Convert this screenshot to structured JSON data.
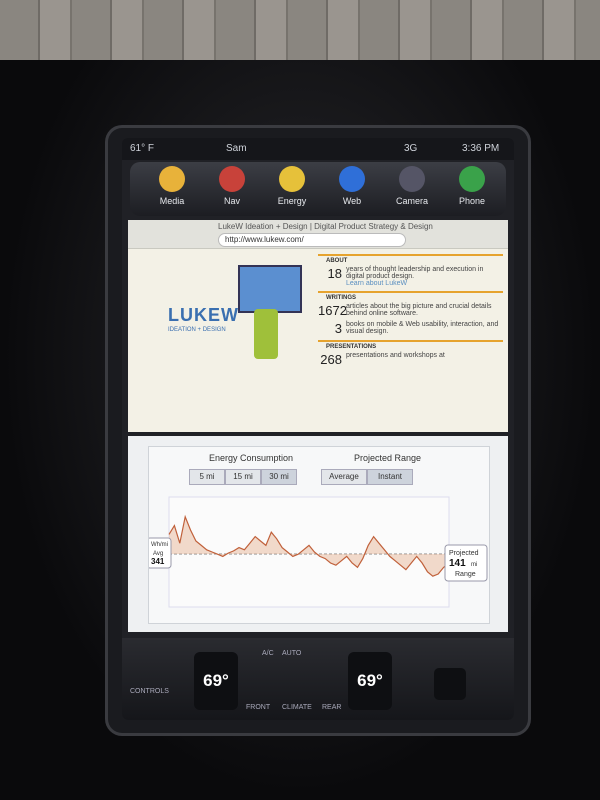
{
  "status": {
    "temperature": "61° F",
    "user": "Sam",
    "network": "3G",
    "time": "3:36 PM"
  },
  "apps": [
    "Media",
    "Nav",
    "Energy",
    "Web",
    "Camera",
    "Phone"
  ],
  "browser": {
    "title": "LukeW Ideation + Design | Digital Product Strategy & Design",
    "url": "http://www.lukew.com/",
    "logo": {
      "name": "LUKEW",
      "tagline": "IDEATION + DESIGN"
    },
    "sections": [
      {
        "heading": "ABOUT",
        "items": [
          {
            "number": "18",
            "text": "years of thought leadership and execution in digital product design.",
            "link": "Learn about LukeW"
          }
        ]
      },
      {
        "heading": "WRITINGS",
        "items": [
          {
            "number": "1672",
            "text": "articles about the big picture and crucial details behind online software."
          },
          {
            "number": "3",
            "text": "books on mobile & Web usability, interaction, and visual design."
          }
        ]
      },
      {
        "heading": "PRESENTATIONS",
        "items": [
          {
            "number": "268",
            "text": "presentations and workshops at"
          }
        ]
      }
    ]
  },
  "energy": {
    "title": "Energy Consumption",
    "ranges": [
      "5 mi",
      "15 mi",
      "30 mi"
    ],
    "projected_title": "Projected Range",
    "modes": [
      "Average",
      "Instant"
    ],
    "unit": "Wh/mi",
    "avg_label": "Avg",
    "avg": 341,
    "projected_label": "Projected",
    "projected": 141,
    "projected_unit": "mi",
    "range_label": "Range",
    "graph": {
      "ylim": [
        100,
        600
      ],
      "values": [
        430,
        470,
        390,
        510,
        450,
        400,
        380,
        360,
        350,
        340,
        330,
        345,
        355,
        370,
        360,
        390,
        420,
        400,
        380,
        440,
        410,
        370,
        350,
        330,
        340,
        360,
        380,
        350,
        330,
        320,
        300,
        290,
        310,
        330,
        300,
        280,
        320,
        380,
        420,
        390,
        360,
        330,
        310,
        290,
        270,
        300,
        330,
        300,
        260,
        240,
        250,
        280,
        300
      ]
    }
  },
  "climate": {
    "controls": "CONTROLS",
    "left_temp": "69°",
    "right_temp": "69°",
    "front": "FRONT",
    "rear": "REAR",
    "climate": "CLIMATE",
    "ac": "A/C",
    "auto": "AUTO"
  }
}
